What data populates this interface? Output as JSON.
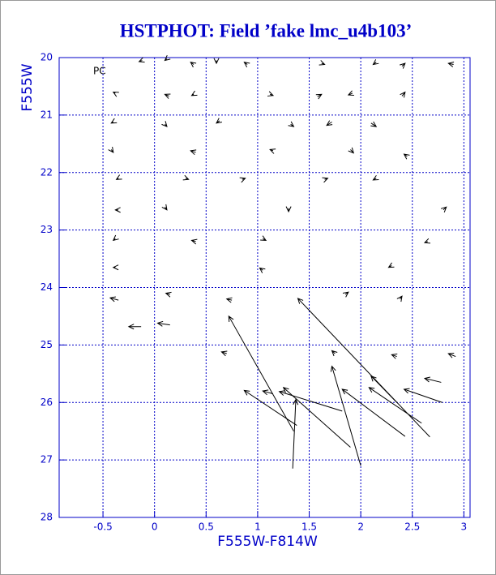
{
  "chart_data": {
    "type": "quiver",
    "title": "HSTPHOT: Field ’fake lmc_u4b103’",
    "annotation": "PC",
    "x_label": "F555W-F814W",
    "y_label": "F555W",
    "xlim": [
      -0.925,
      3.06
    ],
    "ylim": [
      28,
      20
    ],
    "xticks": [
      -0.5,
      0,
      0.5,
      1,
      1.5,
      2,
      2.5,
      3
    ],
    "yticks": [
      20,
      21,
      22,
      23,
      24,
      25,
      26,
      27,
      28
    ],
    "grid": true,
    "axis_color": "#0000c8",
    "arrow_color": "#000000",
    "x_tail": [
      -0.12,
      0.12,
      0.38,
      0.6,
      0.9,
      1.62,
      2.15,
      2.4,
      2.9,
      -0.38,
      0.14,
      0.38,
      1.12,
      1.58,
      1.92,
      2.4,
      -0.4,
      0.1,
      0.63,
      1.32,
      1.72,
      2.1,
      -0.42,
      0.4,
      1.15,
      1.9,
      2.45,
      -0.35,
      0.3,
      0.85,
      1.65,
      2.15,
      -0.35,
      0.1,
      1.3,
      2.8,
      -0.38,
      0.4,
      1.05,
      2.65,
      -0.38,
      1.05,
      2.3,
      -0.35,
      0.15,
      0.75,
      1.85,
      2.38,
      0.7,
      1.75,
      2.35,
      2.92,
      1.35,
      2.67,
      2.0,
      1.34,
      1.9,
      2.43,
      2.59,
      2.35,
      2.79,
      1.82,
      1.38,
      2.78,
      -0.13,
      0.15,
      1.15
    ],
    "y_tail": [
      20.05,
      20.02,
      20.12,
      20.05,
      20.12,
      20.1,
      20.08,
      20.15,
      20.12,
      20.62,
      20.67,
      20.64,
      20.64,
      20.68,
      20.62,
      20.67,
      21.12,
      21.16,
      21.1,
      21.16,
      21.12,
      21.14,
      21.6,
      21.65,
      21.62,
      21.6,
      21.72,
      22.1,
      22.1,
      22.12,
      22.12,
      22.1,
      22.65,
      22.6,
      22.62,
      22.65,
      23.15,
      23.2,
      23.15,
      23.2,
      23.65,
      23.7,
      23.62,
      24.22,
      24.12,
      24.22,
      24.12,
      24.2,
      25.15,
      25.15,
      25.2,
      25.2,
      26.5,
      26.6,
      27.1,
      27.15,
      26.78,
      26.59,
      26.36,
      26.0,
      26.0,
      26.15,
      26.4,
      25.65,
      24.68,
      24.65,
      25.85
    ],
    "x_head": [
      -0.15,
      0.1,
      0.35,
      0.6,
      0.87,
      1.65,
      2.12,
      2.43,
      2.85,
      -0.4,
      0.1,
      0.36,
      1.15,
      1.62,
      1.88,
      2.43,
      -0.42,
      0.12,
      0.6,
      1.35,
      1.67,
      2.15,
      -0.4,
      0.35,
      1.12,
      1.93,
      2.42,
      -0.37,
      0.33,
      0.88,
      1.68,
      2.12,
      -0.38,
      0.12,
      1.3,
      2.83,
      -0.4,
      0.36,
      1.08,
      2.62,
      -0.4,
      1.02,
      2.27,
      -0.43,
      0.11,
      0.7,
      1.88,
      2.4,
      0.65,
      1.72,
      2.3,
      2.85,
      0.72,
      1.39,
      1.72,
      1.37,
      1.25,
      1.82,
      2.08,
      2.1,
      2.42,
      1.21,
      0.87,
      2.62,
      -0.25,
      0.03,
      1.05
    ],
    "y_head": [
      20.07,
      20.05,
      20.08,
      20.1,
      20.08,
      20.12,
      20.12,
      20.1,
      20.1,
      20.6,
      20.64,
      20.66,
      20.66,
      20.64,
      20.65,
      20.6,
      21.14,
      21.2,
      21.14,
      21.2,
      21.18,
      21.2,
      21.65,
      21.62,
      21.6,
      21.66,
      21.68,
      22.12,
      22.12,
      22.1,
      22.1,
      22.13,
      22.65,
      22.65,
      22.68,
      22.6,
      23.18,
      23.18,
      23.18,
      23.22,
      23.65,
      23.66,
      23.65,
      24.18,
      24.1,
      24.2,
      24.08,
      24.15,
      25.12,
      25.1,
      25.17,
      25.15,
      24.5,
      24.19,
      25.37,
      25.95,
      25.74,
      25.77,
      25.74,
      25.54,
      25.77,
      25.81,
      25.79,
      25.58,
      24.68,
      24.62,
      25.8
    ]
  }
}
